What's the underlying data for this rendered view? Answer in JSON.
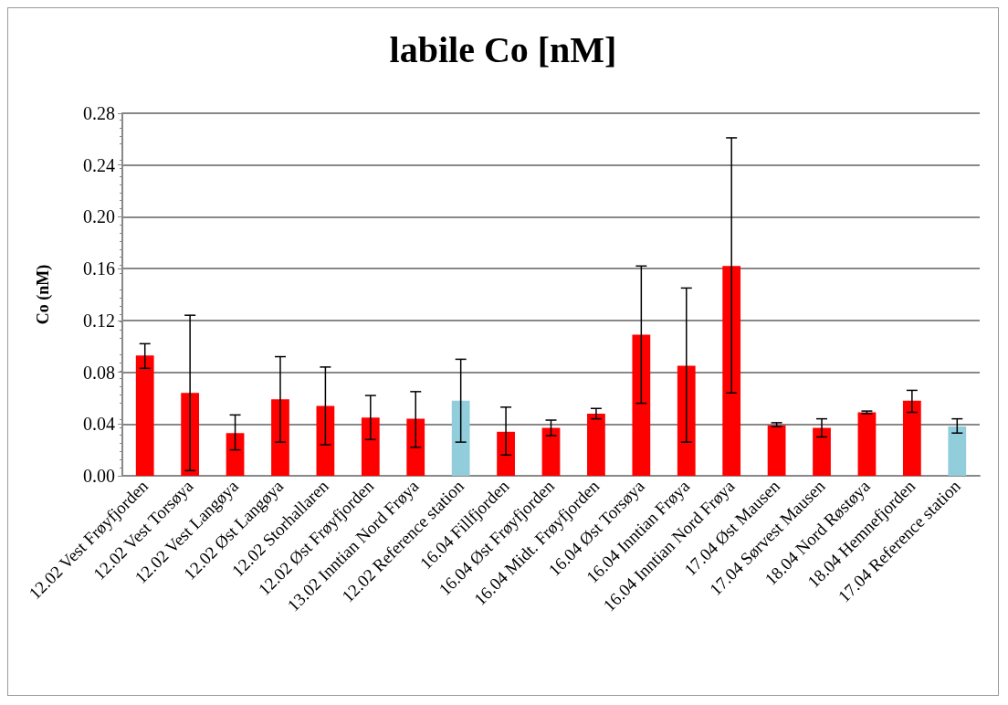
{
  "chart_data": {
    "type": "bar",
    "title": "labile Co [nM]",
    "ylabel": "Co (nM)",
    "categories": [
      "12.02 Vest Frøyfjorden",
      "12.02 Vest Torsøya",
      "12.02 Vest Langøya",
      "12.02 Øst Langøya",
      "12.02 Storhallaren",
      "12.02 Øst Frøyfjorden",
      "13.02 Inntian Nord Frøya",
      "12.02 Reference station",
      "16.04 Fillfjorden",
      "16.04 Øst Frøyfjorden",
      "16.04 Midt. Frøyfjorden",
      "16.04 Øst Torsøya",
      "16.04 Inntian Frøya",
      "16.04 Inntian Nord Frøya",
      "17.04 Øst Mausen",
      "17.04 Sørvest Mausen",
      "18.04 Nord Røstøya",
      "18.04 Hemnefjorden",
      "17.04 Reference station"
    ],
    "values": [
      0.093,
      0.064,
      0.033,
      0.059,
      0.054,
      0.045,
      0.044,
      0.058,
      0.034,
      0.037,
      0.048,
      0.109,
      0.085,
      0.162,
      0.039,
      0.037,
      0.049,
      0.058,
      0.038
    ],
    "errors": [
      [
        0.083,
        0.102
      ],
      [
        0.004,
        0.124
      ],
      [
        0.02,
        0.047
      ],
      [
        0.026,
        0.092
      ],
      [
        0.024,
        0.084
      ],
      [
        0.028,
        0.062
      ],
      [
        0.022,
        0.065
      ],
      [
        0.026,
        0.09
      ],
      [
        0.016,
        0.053
      ],
      [
        0.031,
        0.043
      ],
      [
        0.044,
        0.052
      ],
      [
        0.056,
        0.162
      ],
      [
        0.026,
        0.145
      ],
      [
        0.064,
        0.261
      ],
      [
        0.038,
        0.041
      ],
      [
        0.03,
        0.044
      ],
      [
        0.048,
        0.05
      ],
      [
        0.049,
        0.066
      ],
      [
        0.033,
        0.044
      ]
    ],
    "colors": [
      "#ff0000",
      "#ff0000",
      "#ff0000",
      "#ff0000",
      "#ff0000",
      "#ff0000",
      "#ff0000",
      "#92cddc",
      "#ff0000",
      "#ff0000",
      "#ff0000",
      "#ff0000",
      "#ff0000",
      "#ff0000",
      "#ff0000",
      "#ff0000",
      "#ff0000",
      "#ff0000",
      "#92cddc"
    ],
    "ylim": [
      0,
      0.28
    ],
    "yticks": [
      {
        "value": 0,
        "label": "0.00"
      },
      0.04,
      0.08,
      0.12,
      0.16,
      {
        "value": 0.2,
        "label": "0.20"
      },
      0.24,
      0.28
    ],
    "grid": "y"
  }
}
